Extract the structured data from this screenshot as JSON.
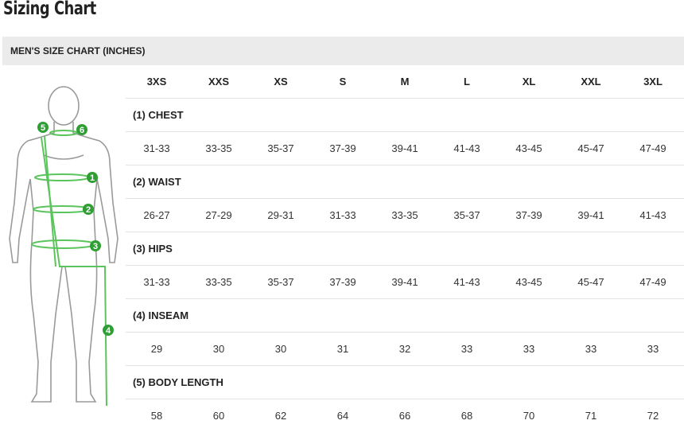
{
  "title": "Sizing Chart",
  "chart_header": "MEN'S SIZE CHART (INCHES)",
  "colors": {
    "accent": "#3db33d",
    "header_bg": "#ebebeb"
  },
  "figure_icon": "body-measurement-diagram",
  "sizes": [
    "3XS",
    "XXS",
    "XS",
    "S",
    "M",
    "L",
    "XL",
    "XXL",
    "3XL"
  ],
  "measurements": [
    {
      "label": "(1) CHEST",
      "values": [
        "31-33",
        "33-35",
        "35-37",
        "37-39",
        "39-41",
        "41-43",
        "43-45",
        "45-47",
        "47-49"
      ]
    },
    {
      "label": "(2) WAIST",
      "values": [
        "26-27",
        "27-29",
        "29-31",
        "31-33",
        "33-35",
        "35-37",
        "37-39",
        "39-41",
        "41-43"
      ]
    },
    {
      "label": "(3) HIPS",
      "values": [
        "31-33",
        "33-35",
        "35-37",
        "37-39",
        "39-41",
        "41-43",
        "43-45",
        "45-47",
        "47-49"
      ]
    },
    {
      "label": "(4) INSEAM",
      "values": [
        "29",
        "30",
        "30",
        "31",
        "32",
        "33",
        "33",
        "33",
        "33"
      ]
    },
    {
      "label": "(5) BODY LENGTH",
      "values": [
        "58",
        "60",
        "62",
        "64",
        "66",
        "68",
        "70",
        "71",
        "72"
      ]
    }
  ],
  "figure_markers": [
    "1",
    "2",
    "3",
    "4",
    "5",
    "6"
  ]
}
